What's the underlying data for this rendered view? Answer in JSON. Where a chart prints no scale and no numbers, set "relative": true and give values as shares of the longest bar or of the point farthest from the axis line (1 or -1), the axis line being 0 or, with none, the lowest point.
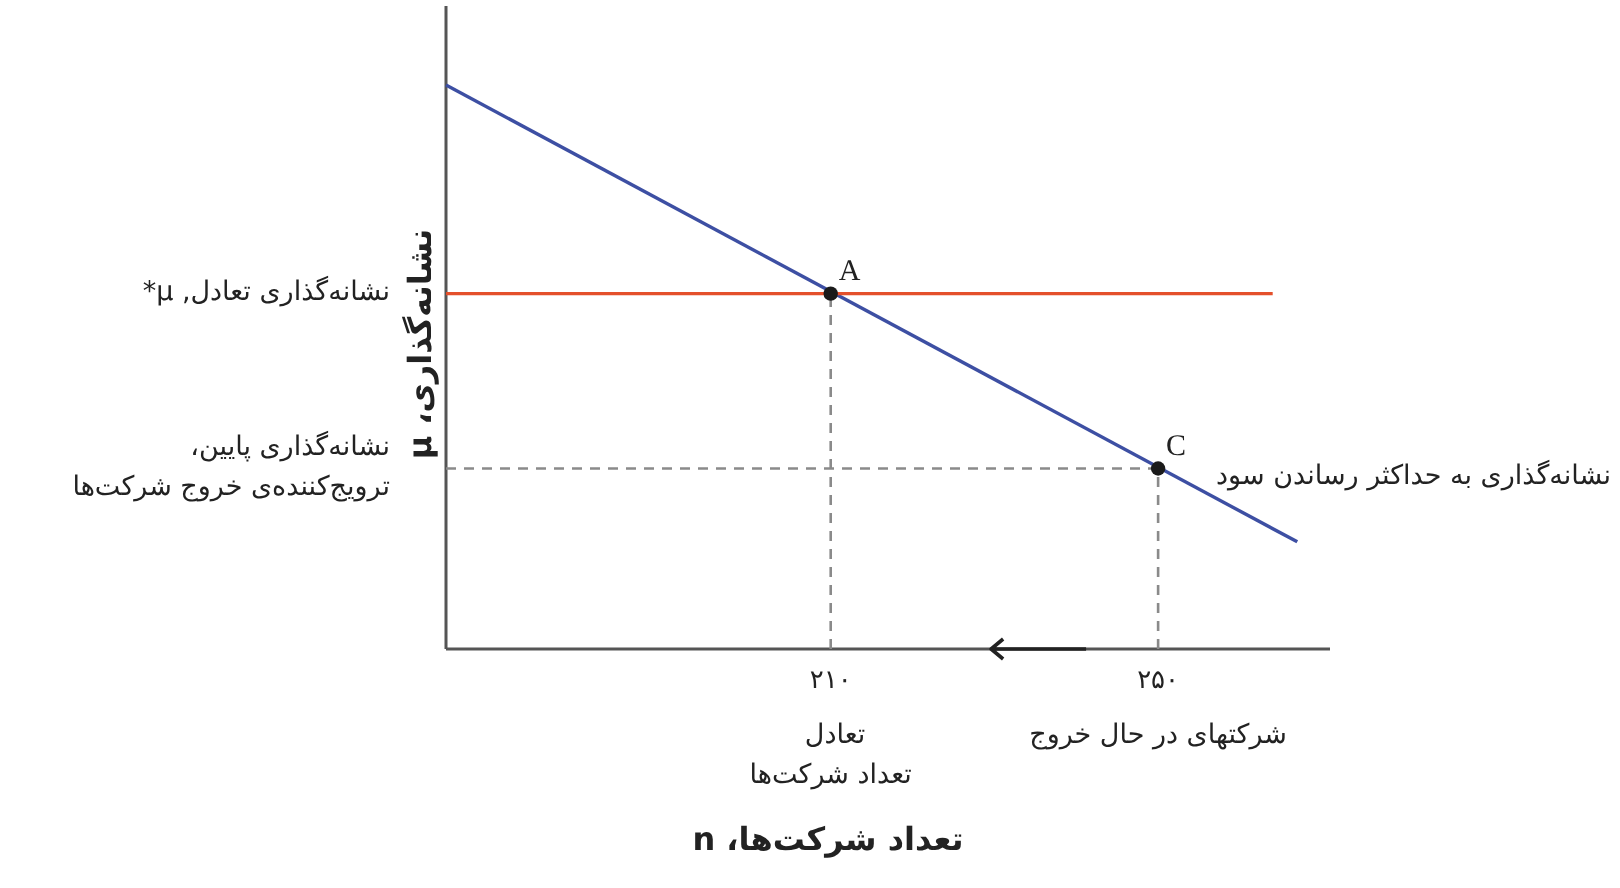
{
  "chart_data": {
    "type": "line",
    "xlabel": "تعداد شرکت‌ها، n",
    "ylabel": "نشانه‌گذاری، μ",
    "relative": true,
    "xlim": [
      163,
      271
    ],
    "xticks": [
      {
        "value": 210,
        "label": "۲۱۰"
      },
      {
        "value": 250,
        "label": "۲۵۰"
      }
    ],
    "series": [
      {
        "name": "نشانه‌گذاری به حداکثر رساندن سود",
        "color": "#3d4fa3",
        "x": [
          163,
          267
        ],
        "values": [
          1,
          0.19
        ]
      },
      {
        "name": "نشانه‌گذاری تعادل, μ*",
        "color": "#e4502b",
        "x": [
          163,
          264
        ],
        "values": [
          0.63,
          0.63
        ]
      },
      {
        "name": "نشانه‌گذاری پایین،\nترویج‌کننده‌ی خروج شرکت‌ها",
        "color": "#8a8a8a",
        "line_style": "dashed",
        "x": [
          163,
          250
        ],
        "values": [
          0.32,
          0.32
        ]
      },
      {
        "color": "#8a8a8a",
        "line_style": "dashed",
        "x": [
          210,
          210
        ],
        "values": [
          0,
          0.63
        ]
      },
      {
        "color": "#8a8a8a",
        "line_style": "dashed",
        "x": [
          250,
          250
        ],
        "values": [
          0,
          0.32
        ]
      },
      {
        "type": "scatter",
        "name": "A",
        "color": "#1a1a1a",
        "marker": "circle",
        "x": [
          210
        ],
        "values": [
          0.63
        ]
      },
      {
        "type": "scatter",
        "name": "C",
        "color": "#1a1a1a",
        "marker": "circle",
        "x": [
          250
        ],
        "values": [
          0.32
        ]
      }
    ],
    "annotations": [
      {
        "text": "تعادل\nتعداد شرکت‌ها",
        "x": 210,
        "y": 0
      },
      {
        "text": "شرکتهای در حال خروج",
        "x": 250,
        "y": 0
      }
    ]
  }
}
